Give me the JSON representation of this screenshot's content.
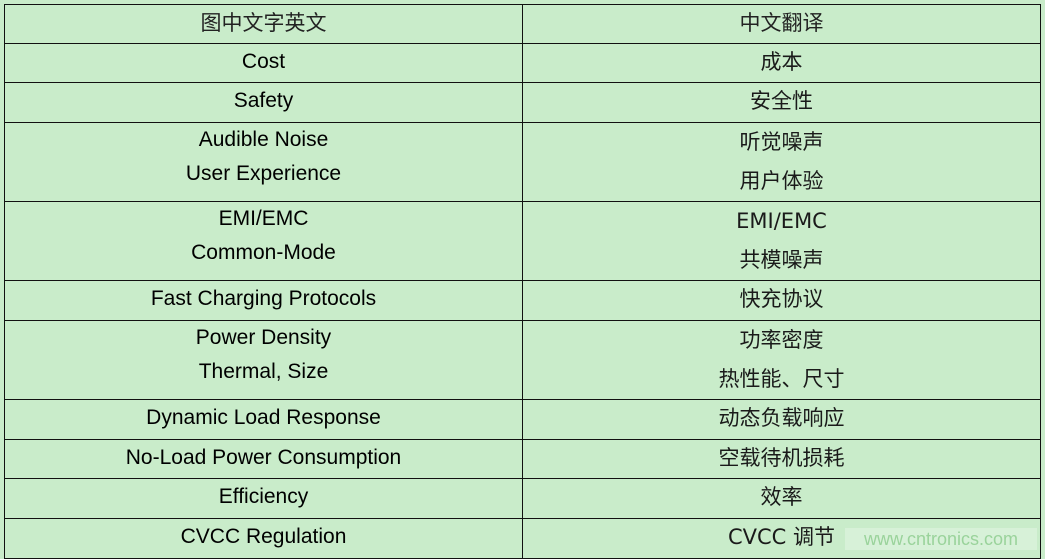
{
  "header": {
    "en": "图中文字英文",
    "zh": "中文翻译"
  },
  "rows": [
    {
      "en": [
        "Cost"
      ],
      "zh": [
        "成本"
      ]
    },
    {
      "en": [
        "Safety"
      ],
      "zh": [
        "安全性"
      ]
    },
    {
      "en": [
        "Audible Noise",
        "User Experience"
      ],
      "zh": [
        "听觉噪声",
        "用户体验"
      ]
    },
    {
      "en": [
        "EMI/EMC",
        "Common-Mode"
      ],
      "zh": [
        "EMI/EMC",
        "共模噪声"
      ]
    },
    {
      "en": [
        "Fast Charging Protocols"
      ],
      "zh": [
        "快充协议"
      ]
    },
    {
      "en": [
        "Power Density",
        "Thermal, Size"
      ],
      "zh": [
        "功率密度",
        "热性能、尺寸"
      ]
    },
    {
      "en": [
        "Dynamic Load Response"
      ],
      "zh": [
        "动态负载响应"
      ]
    },
    {
      "en": [
        "No-Load Power Consumption"
      ],
      "zh": [
        "空载待机损耗"
      ]
    },
    {
      "en": [
        "Efficiency"
      ],
      "zh": [
        "效率"
      ]
    },
    {
      "en": [
        "CVCC Regulation"
      ],
      "zh": [
        "CVCC 调节"
      ]
    }
  ],
  "watermark": "www.cntronics.com",
  "colors": {
    "background": "#c9ecca",
    "border": "#111111",
    "watermark": "#9ad39b"
  }
}
